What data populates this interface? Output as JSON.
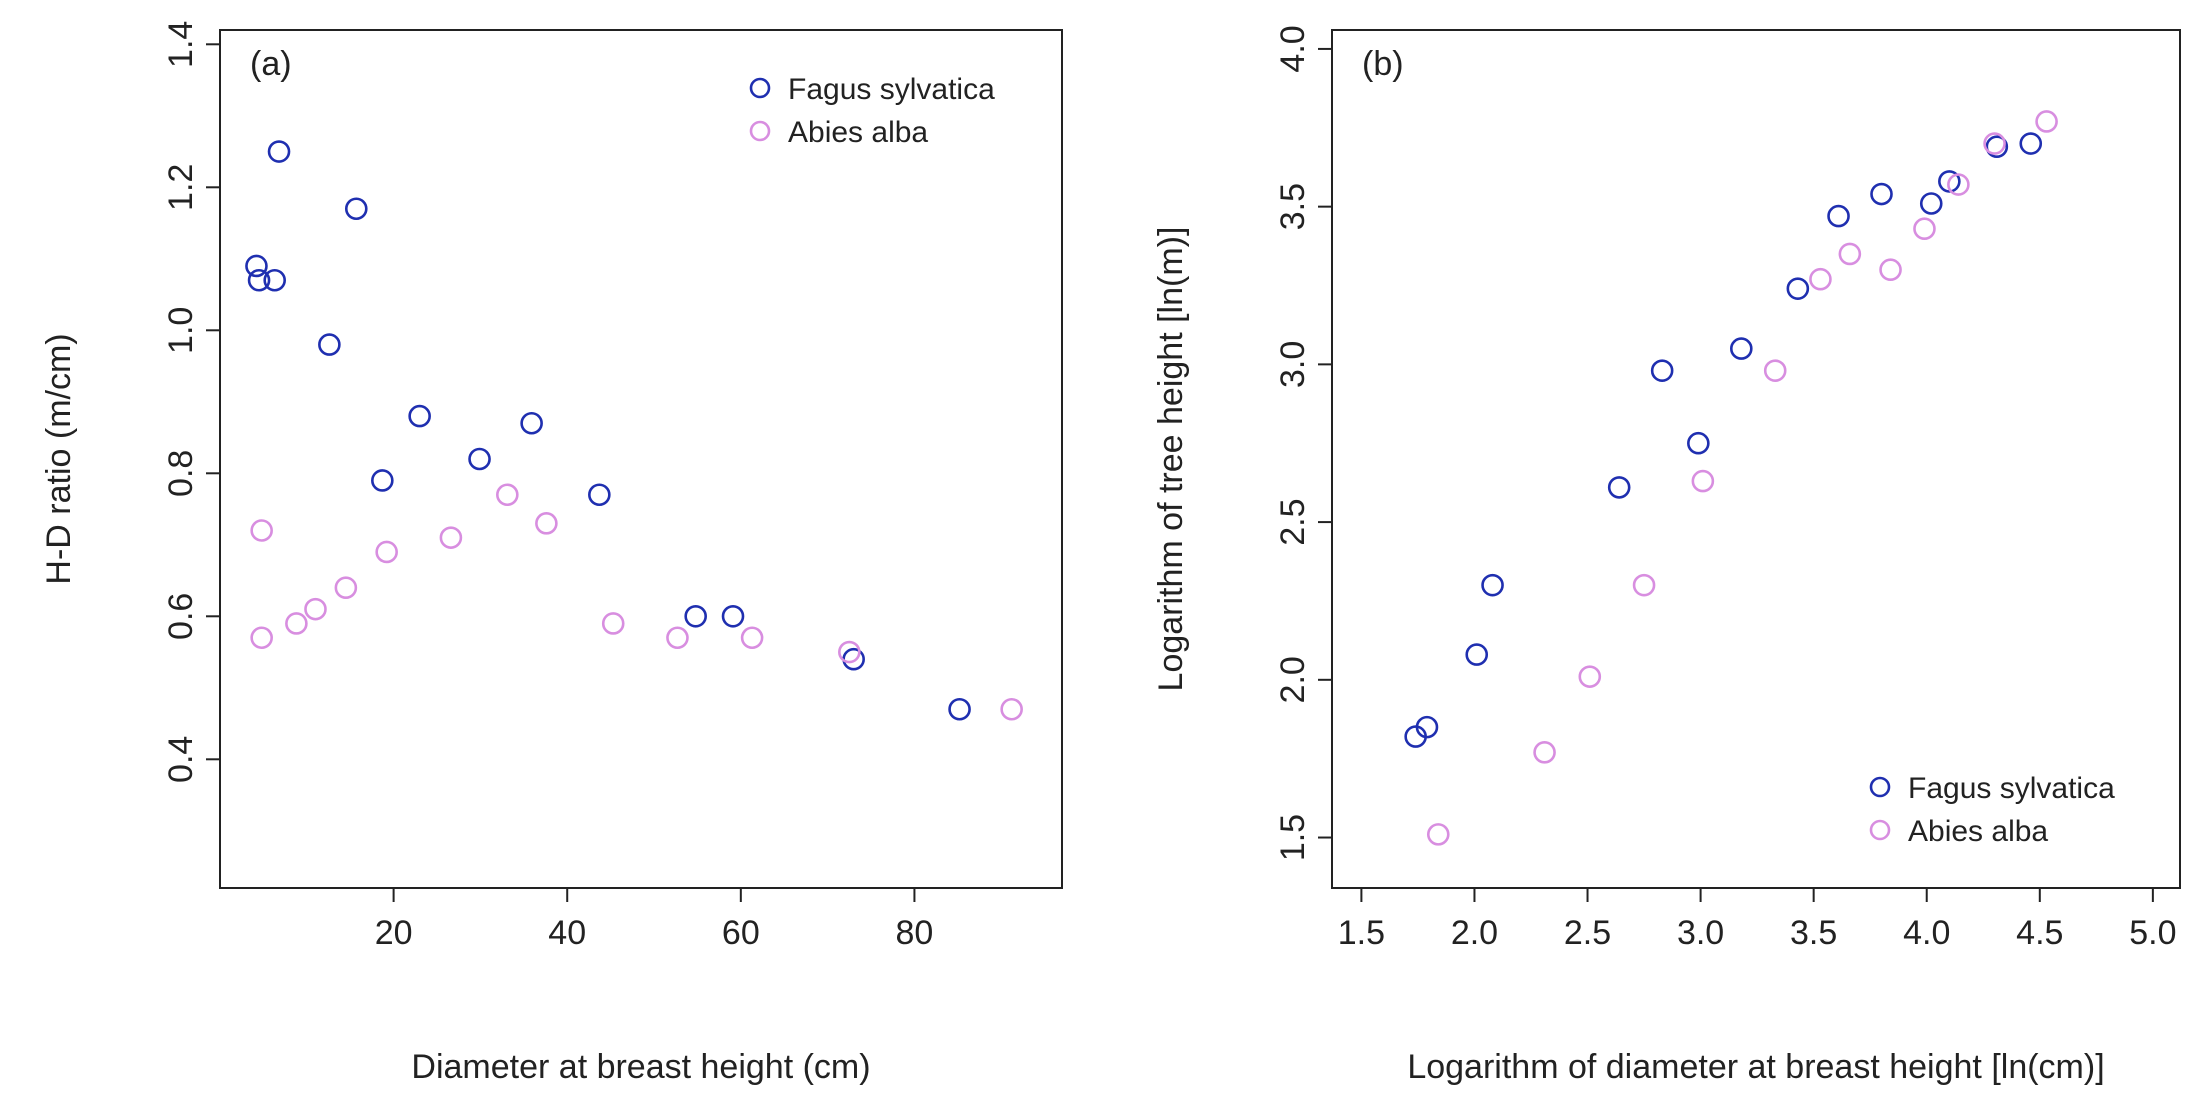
{
  "colors": {
    "fagus": "#1f2fb0",
    "abies": "#d88ee0",
    "axis": "#222222"
  },
  "chart_data": [
    {
      "type": "scatter",
      "panel_label": "(a)",
      "xlabel": "Diameter at breast height (cm)",
      "ylabel": "H-D ratio (m/cm)",
      "xlim": [
        0,
        97
      ],
      "ylim": [
        0.22,
        1.42
      ],
      "xticks": [
        20,
        40,
        60,
        80
      ],
      "xtick_labels": [
        "20",
        "40",
        "60",
        "80"
      ],
      "yticks": [
        0.4,
        0.6,
        0.8,
        1.0,
        1.2,
        1.4
      ],
      "ytick_labels": [
        "0.4",
        "0.6",
        "0.8",
        "1.0",
        "1.2",
        "1.4"
      ],
      "legend_position": "top-right",
      "series": [
        {
          "name": "Fagus sylvatica",
          "color_key": "fagus",
          "x": [
            4.2,
            4.5,
            6.3,
            6.8,
            12.6,
            15.7,
            18.7,
            23.0,
            29.9,
            35.9,
            43.7,
            54.8,
            59.1,
            73.0,
            85.2
          ],
          "y": [
            1.09,
            1.07,
            1.07,
            1.25,
            0.98,
            1.17,
            0.79,
            0.88,
            0.82,
            0.87,
            0.77,
            0.6,
            0.6,
            0.54,
            0.47
          ]
        },
        {
          "name": "Abies alba",
          "color_key": "abies",
          "x": [
            4.8,
            4.8,
            8.8,
            11.0,
            14.5,
            19.2,
            26.6,
            33.1,
            37.6,
            45.3,
            52.7,
            61.3,
            72.5,
            91.2
          ],
          "y": [
            0.72,
            0.57,
            0.59,
            0.61,
            0.64,
            0.69,
            0.71,
            0.77,
            0.73,
            0.59,
            0.57,
            0.57,
            0.55,
            0.47
          ]
        }
      ]
    },
    {
      "type": "scatter",
      "panel_label": "(b)",
      "xlabel": "Logarithm of diameter at breast height [ln(cm)]",
      "ylabel": "Logarithm of tree height [ln(m)]",
      "xlim": [
        1.37,
        5.12
      ],
      "ylim": [
        1.34,
        4.06
      ],
      "xticks": [
        1.5,
        2.0,
        2.5,
        3.0,
        3.5,
        4.0,
        4.5,
        5.0
      ],
      "xtick_labels": [
        "1.5",
        "2.0",
        "2.5",
        "3.0",
        "3.5",
        "4.0",
        "4.5",
        "5.0"
      ],
      "yticks": [
        1.5,
        2.0,
        2.5,
        3.0,
        3.5,
        4.0
      ],
      "ytick_labels": [
        "1.5",
        "2.0",
        "2.5",
        "3.0",
        "3.5",
        "4.0"
      ],
      "legend_position": "bottom-right",
      "series": [
        {
          "name": "Fagus sylvatica",
          "color_key": "fagus",
          "x": [
            1.74,
            1.79,
            2.01,
            2.08,
            2.64,
            2.83,
            2.99,
            3.18,
            3.43,
            3.61,
            3.8,
            4.02,
            4.1,
            4.31,
            4.46
          ],
          "y": [
            1.82,
            1.85,
            2.08,
            2.3,
            2.61,
            2.98,
            2.75,
            3.05,
            3.24,
            3.47,
            3.54,
            3.51,
            3.58,
            3.69,
            3.7
          ]
        },
        {
          "name": "Abies alba",
          "color_key": "abies",
          "x": [
            1.84,
            2.31,
            2.51,
            2.75,
            3.01,
            3.33,
            3.53,
            3.66,
            3.84,
            3.99,
            4.14,
            4.3,
            4.53
          ],
          "y": [
            1.51,
            1.77,
            2.01,
            2.3,
            2.63,
            2.98,
            3.27,
            3.35,
            3.3,
            3.43,
            3.57,
            3.7,
            3.77
          ]
        }
      ]
    }
  ]
}
